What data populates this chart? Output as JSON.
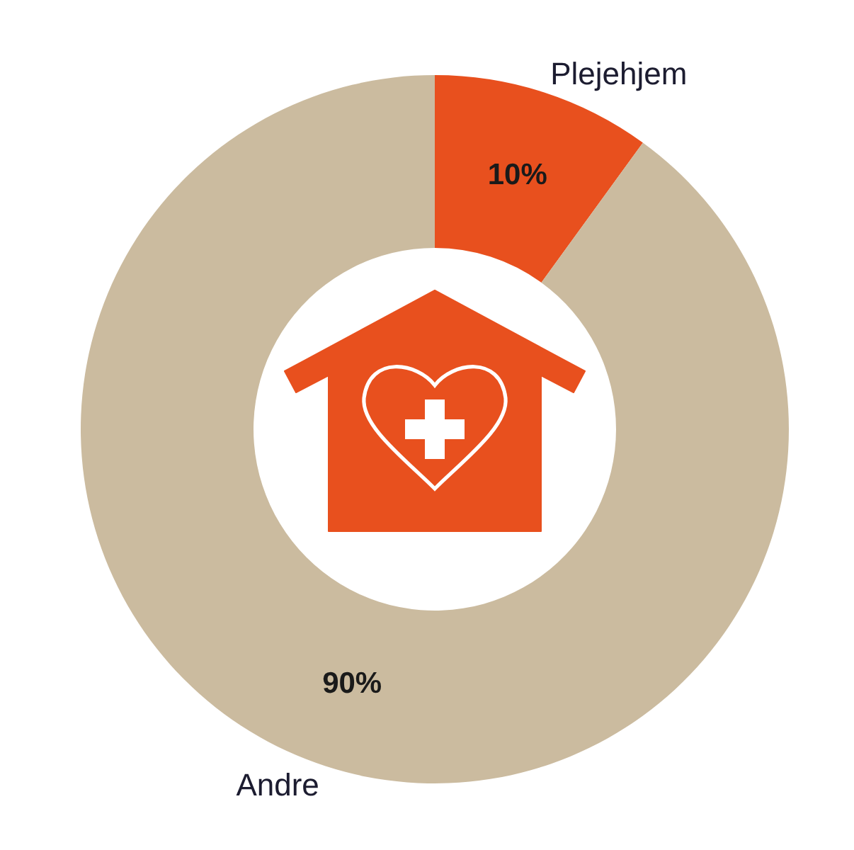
{
  "chart_data": {
    "type": "donut",
    "categories": [
      "Plejehjem",
      "Andre"
    ],
    "values": [
      10,
      90
    ],
    "colors": [
      "#e8501e",
      "#cbbb9f"
    ],
    "value_labels": [
      "10%",
      "90%"
    ]
  }
}
